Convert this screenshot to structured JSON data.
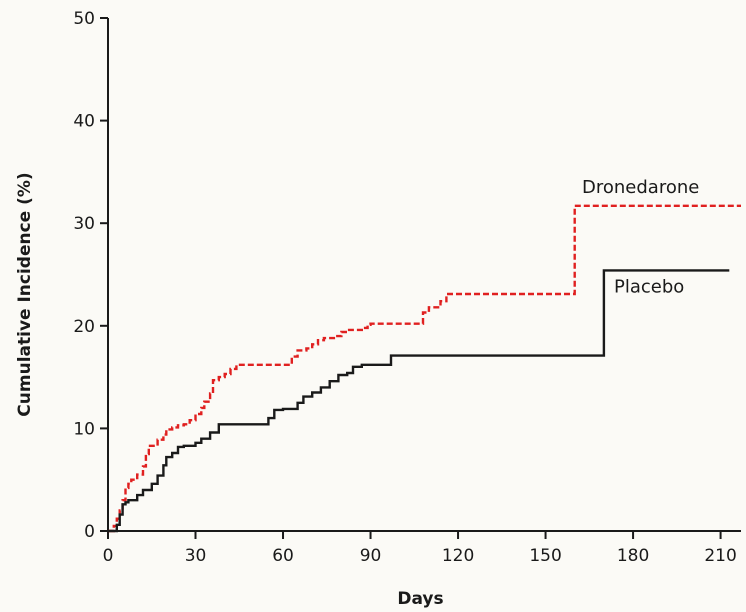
{
  "chart_data": {
    "type": "line",
    "step": true,
    "xlabel": "Days",
    "ylabel": "Cumulative Incidence (%)",
    "xlim": [
      0,
      217
    ],
    "ylim": [
      0,
      50
    ],
    "xticks": [
      0,
      30,
      60,
      90,
      120,
      150,
      180,
      210
    ],
    "yticks": [
      0,
      10,
      20,
      30,
      40,
      50
    ],
    "grid": false,
    "series": [
      {
        "name": "Dronedarone",
        "color": "#e02020",
        "dash": "dashed",
        "x": [
          0,
          2,
          3,
          4,
          5,
          6,
          7,
          8,
          10,
          12,
          13,
          14,
          15,
          17,
          19,
          20,
          22,
          24,
          26,
          28,
          30,
          32,
          33,
          35,
          36,
          38,
          40,
          42,
          44,
          45,
          63,
          65,
          68,
          70,
          72,
          74,
          78,
          80,
          82,
          87,
          89,
          90,
          107,
          108,
          110,
          114,
          116,
          160,
          217
        ],
        "y": [
          0,
          0.5,
          1.2,
          2.0,
          3.0,
          4.2,
          4.6,
          5.0,
          5.5,
          6.3,
          7.5,
          8.3,
          8.3,
          8.9,
          9.4,
          9.9,
          10.1,
          10.3,
          10.4,
          10.8,
          11.4,
          12.0,
          12.6,
          13.4,
          14.7,
          15.0,
          15.3,
          15.8,
          16.2,
          16.2,
          17.0,
          17.6,
          17.8,
          18.2,
          18.6,
          18.8,
          19.0,
          19.4,
          19.6,
          19.8,
          20.1,
          20.2,
          20.2,
          21.3,
          21.8,
          22.4,
          23.1,
          31.7,
          31.7
        ]
      },
      {
        "name": "Placebo",
        "color": "#1a1a1a",
        "dash": "solid",
        "x": [
          0,
          3,
          4,
          5,
          6,
          7,
          10,
          12,
          15,
          17,
          19,
          20,
          22,
          24,
          26,
          30,
          32,
          35,
          38,
          40,
          55,
          57,
          60,
          65,
          67,
          70,
          73,
          76,
          79,
          82,
          84,
          87,
          97,
          170,
          213
        ],
        "y": [
          0,
          0.6,
          1.6,
          2.6,
          2.8,
          3.0,
          3.5,
          4.0,
          4.6,
          5.4,
          6.4,
          7.2,
          7.6,
          8.2,
          8.3,
          8.6,
          9.0,
          9.6,
          10.4,
          10.4,
          11.0,
          11.8,
          11.9,
          12.5,
          13.1,
          13.5,
          14.0,
          14.6,
          15.2,
          15.4,
          16.0,
          16.2,
          17.1,
          25.4,
          25.4
        ]
      }
    ]
  }
}
